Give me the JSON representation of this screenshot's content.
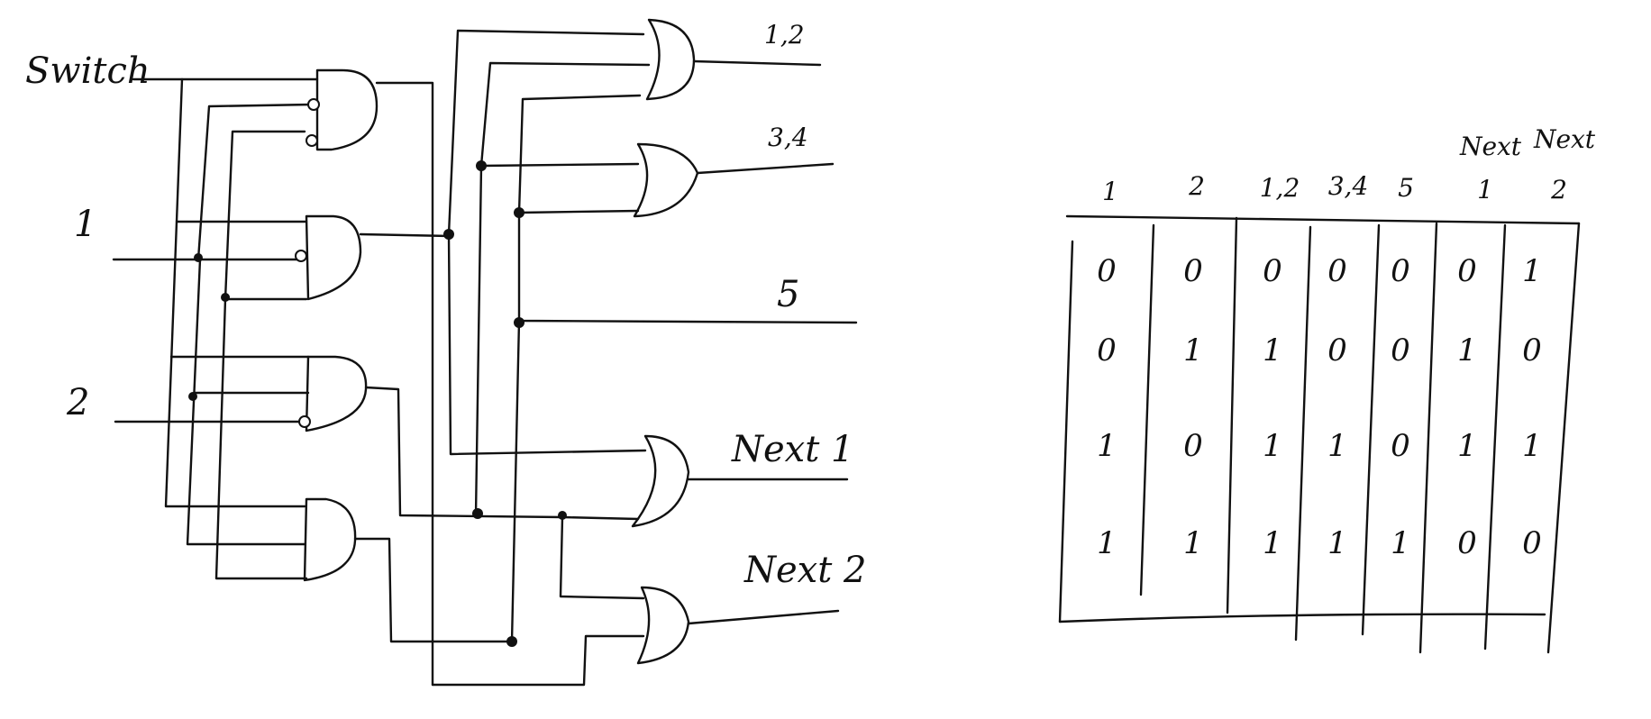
{
  "circuit": {
    "inputs": {
      "switch": "Switch",
      "in1": "1",
      "in2": "2"
    },
    "outputs": {
      "out12": "1,2",
      "out34": "3,4",
      "out5": "5",
      "next1": "Next 1",
      "next2": "Next 2"
    }
  },
  "truth_table": {
    "header_top": [
      "Next",
      "Next"
    ],
    "columns": [
      "1",
      "2",
      "1,2",
      "3,4",
      "5",
      "1",
      "2"
    ],
    "rows": [
      [
        "0",
        "0",
        "0",
        "0",
        "0",
        "0",
        "1"
      ],
      [
        "0",
        "1",
        "1",
        "0",
        "0",
        "1",
        "0"
      ],
      [
        "1",
        "0",
        "1",
        "1",
        "0",
        "1",
        "1"
      ],
      [
        "1",
        "1",
        "1",
        "1",
        "1",
        "0",
        "0"
      ]
    ]
  }
}
